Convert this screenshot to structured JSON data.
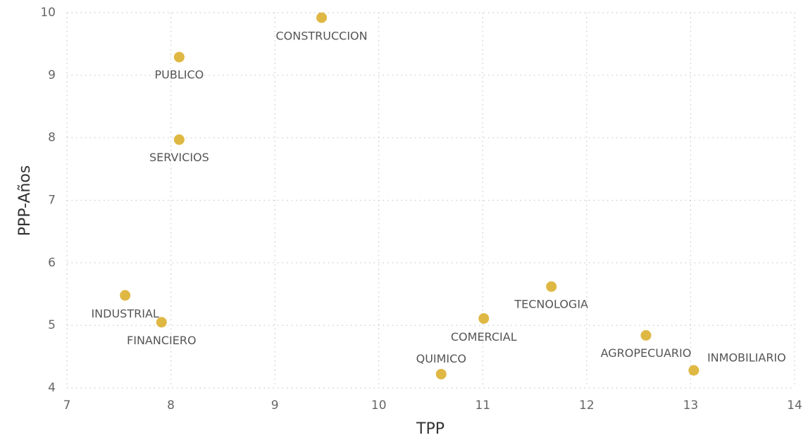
{
  "chart_data": {
    "type": "scatter",
    "x_label": "TPP",
    "y_label": "PPP-Años",
    "labels": [
      "CONSTRUCCION",
      "PUBLICO",
      "SERVICIOS",
      "INDUSTRIAL",
      "FINANCIERO",
      "QUIMICO",
      "COMERCIAL",
      "TECNOLOGIA",
      "AGROPECUARIO",
      "INMOBILIARIO"
    ],
    "x": [
      9.45,
      8.08,
      8.08,
      7.56,
      7.91,
      10.6,
      11.01,
      11.66,
      12.57,
      13.03
    ],
    "values": [
      9.92,
      9.29,
      7.97,
      5.48,
      5.05,
      4.22,
      5.11,
      5.62,
      4.84,
      4.28
    ],
    "color": "#dfb844",
    "xlim": [
      7,
      14
    ],
    "xticks": [
      7,
      8,
      9,
      10,
      11,
      12,
      13,
      14
    ],
    "ylim": [
      4,
      10
    ],
    "yticks": [
      4,
      5,
      6,
      7,
      8,
      9,
      10
    ],
    "grid": true
  }
}
